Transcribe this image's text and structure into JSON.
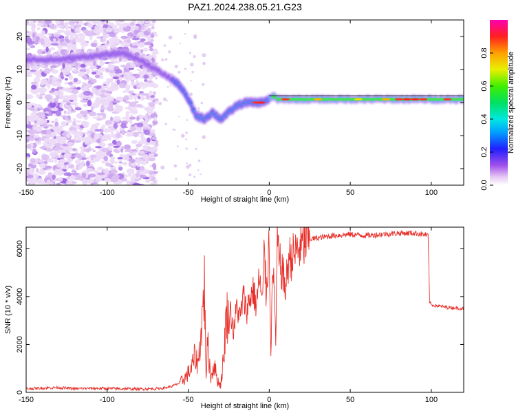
{
  "figure": {
    "title": "PAZ1.2024.238.05.21.G23"
  },
  "chart_data": [
    {
      "type": "heatmap",
      "xlabel": "Height of straight line (km)",
      "ylabel": "Frequency (Hz)",
      "xlim": [
        -150,
        120
      ],
      "ylim": [
        -25,
        25
      ],
      "xticks": [
        "-150",
        "-100",
        "-50",
        "0",
        "50",
        "100"
      ],
      "xtick_values": [
        -150,
        -100,
        -50,
        0,
        50,
        100
      ],
      "yticks": [
        "-20",
        "-10",
        "0",
        "10",
        "20"
      ],
      "ytick_values": [
        -20,
        -10,
        0,
        10,
        20
      ],
      "colorbar": {
        "label": "Normalized spectral amplitude",
        "range": [
          0,
          1
        ],
        "ticks": [
          "0.0",
          "0.2",
          "0.4",
          "0.6",
          "0.8"
        ],
        "tick_values": [
          0,
          0.2,
          0.4,
          0.6,
          0.8
        ]
      },
      "ridge": {
        "x": [
          -150,
          -130,
          -110,
          -90,
          -80,
          -70,
          -60,
          -55,
          -50,
          -45,
          -40,
          -35,
          -30,
          -25,
          -20,
          -15,
          -10,
          -5,
          0,
          3,
          5,
          10,
          20,
          40,
          60,
          80,
          100,
          120
        ],
        "y": [
          13,
          13,
          14,
          15,
          13,
          10,
          7,
          5,
          1,
          -4,
          -5,
          -3,
          -5,
          -3,
          -1,
          0,
          0,
          0,
          1,
          2,
          1,
          1,
          1,
          1,
          1,
          1,
          1,
          1
        ]
      }
    },
    {
      "type": "line",
      "xlabel": "Height of straight line (km)",
      "ylabel": "SNR (10 * v/v)",
      "xlim": [
        -150,
        120
      ],
      "ylim": [
        0,
        6900
      ],
      "xticks": [
        "-150",
        "-100",
        "-50",
        "0",
        "50",
        "100"
      ],
      "xtick_values": [
        -150,
        -100,
        -50,
        0,
        50,
        100
      ],
      "yticks": [
        "0",
        "2000",
        "4000",
        "6000"
      ],
      "ytick_values": [
        0,
        2000,
        4000,
        6000
      ],
      "color": "#e8302a",
      "series": [
        {
          "x": [
            -150,
            -140,
            -130,
            -120,
            -110,
            -100,
            -90,
            -80,
            -70,
            -65,
            -60,
            -55,
            -52,
            -50,
            -48,
            -46,
            -44,
            -42,
            -40,
            -39,
            -38,
            -37,
            -36,
            -34,
            -32,
            -30,
            -28,
            -27,
            -26,
            -25,
            -24,
            -22,
            -20,
            -18,
            -16,
            -14,
            -12,
            -10,
            -8,
            -6,
            -5,
            -4,
            -3,
            -2,
            -1,
            0,
            1,
            2,
            3,
            4,
            5,
            6,
            8,
            10,
            12,
            15,
            18,
            20,
            25,
            30,
            35,
            40,
            50,
            60,
            70,
            80,
            90,
            95,
            98,
            99,
            100,
            105,
            110,
            120
          ],
          "y": [
            150,
            180,
            200,
            150,
            170,
            160,
            150,
            140,
            150,
            180,
            250,
            400,
            600,
            800,
            1000,
            1500,
            1200,
            2500,
            4500,
            800,
            2000,
            1300,
            600,
            1200,
            500,
            300,
            1500,
            2800,
            3300,
            2800,
            3500,
            2500,
            3600,
            3100,
            4000,
            3400,
            3900,
            4300,
            3600,
            4800,
            4100,
            3700,
            6400,
            4100,
            5200,
            6400,
            1700,
            4600,
            5000,
            1800,
            6400,
            5400,
            5100,
            4300,
            5600,
            5700,
            6000,
            6100,
            6400,
            6450,
            6500,
            6550,
            6600,
            6550,
            6600,
            6650,
            6650,
            6600,
            6550,
            3800,
            3650,
            3600,
            3550,
            3500
          ]
        }
      ]
    }
  ]
}
